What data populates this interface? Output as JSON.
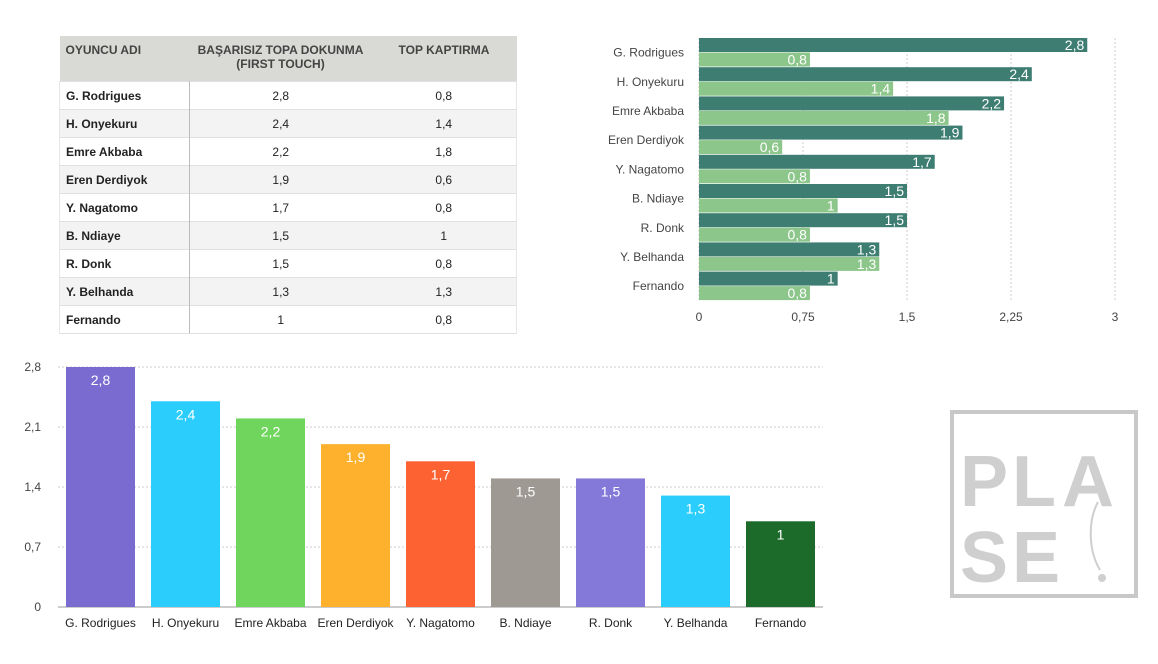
{
  "table": {
    "headers": [
      "OYUNCU ADI",
      "BAŞARISIZ TOPA DOKUNMA (FIRST TOUCH)",
      "TOP KAPTIRMA"
    ],
    "rows": [
      {
        "name": "G. Rodrigues",
        "first_touch": "2,8",
        "top_kaptirma": "0,8"
      },
      {
        "name": "H. Onyekuru",
        "first_touch": "2,4",
        "top_kaptirma": "1,4"
      },
      {
        "name": "Emre Akbaba",
        "first_touch": "2,2",
        "top_kaptirma": "1,8"
      },
      {
        "name": "Eren Derdiyok",
        "first_touch": "1,9",
        "top_kaptirma": "0,6"
      },
      {
        "name": "Y. Nagatomo",
        "first_touch": "1,7",
        "top_kaptirma": "0,8"
      },
      {
        "name": "B. Ndiaye",
        "first_touch": "1,5",
        "top_kaptirma": "1"
      },
      {
        "name": "R. Donk",
        "first_touch": "1,5",
        "top_kaptirma": "0,8"
      },
      {
        "name": "Y. Belhanda",
        "first_touch": "1,3",
        "top_kaptirma": "1,3"
      },
      {
        "name": "Fernando",
        "first_touch": "1",
        "top_kaptirma": "0,8"
      }
    ]
  },
  "chart_data": [
    {
      "type": "bar",
      "orientation": "horizontal",
      "categories": [
        "G. Rodrigues",
        "H. Onyekuru",
        "Emre Akbaba",
        "Eren Derdiyok",
        "Y. Nagatomo",
        "B. Ndiaye",
        "R. Donk",
        "Y. Belhanda",
        "Fernando"
      ],
      "series": [
        {
          "values": [
            2.8,
            2.4,
            2.2,
            1.9,
            1.7,
            1.5,
            1.5,
            1.3,
            1
          ],
          "labels": [
            "2,8",
            "2,4",
            "2,2",
            "1,9",
            "1,7",
            "1,5",
            "1,5",
            "1,3",
            "1"
          ],
          "color": "#3e7d72"
        },
        {
          "values": [
            0.8,
            1.4,
            1.8,
            0.6,
            0.8,
            1,
            0.8,
            1.3,
            0.8
          ],
          "labels": [
            "0,8",
            "1,4",
            "1,8",
            "0,6",
            "0,8",
            "1",
            "0,8",
            "1,3",
            "0,8"
          ],
          "color": "#8cc68a"
        }
      ],
      "xlim": [
        0,
        3
      ],
      "ticks": [
        0,
        0.75,
        1.5,
        2.25,
        3
      ],
      "tick_labels": [
        "0",
        "0,75",
        "1,5",
        "2,25",
        "3"
      ],
      "grid": true,
      "legend": "none"
    },
    {
      "type": "bar",
      "orientation": "vertical",
      "categories": [
        "G. Rodrigues",
        "H. Onyekuru",
        "Emre Akbaba",
        "Eren Derdiyok",
        "Y. Nagatomo",
        "B. Ndiaye",
        "R. Donk",
        "Y. Belhanda",
        "Fernando"
      ],
      "values": [
        2.8,
        2.4,
        2.2,
        1.9,
        1.7,
        1.5,
        1.5,
        1.3,
        1
      ],
      "labels": [
        "2,8",
        "2,4",
        "2,2",
        "1,9",
        "1,7",
        "1,5",
        "1,5",
        "1,3",
        "1"
      ],
      "colors": [
        "#7a6bd1",
        "#2bcdfc",
        "#6fd55d",
        "#fdb12c",
        "#fd6232",
        "#9e9a93",
        "#8478d8",
        "#2bcdfc",
        "#1d6b2a"
      ],
      "ylim": [
        0,
        2.8
      ],
      "ticks": [
        0,
        0.7,
        1.4,
        2.1,
        2.8
      ],
      "tick_labels": [
        "0",
        "0,7",
        "1,4",
        "2,1",
        "2,8"
      ],
      "grid": true,
      "legend": "none"
    }
  ],
  "logo": {
    "text": "PLASE"
  }
}
